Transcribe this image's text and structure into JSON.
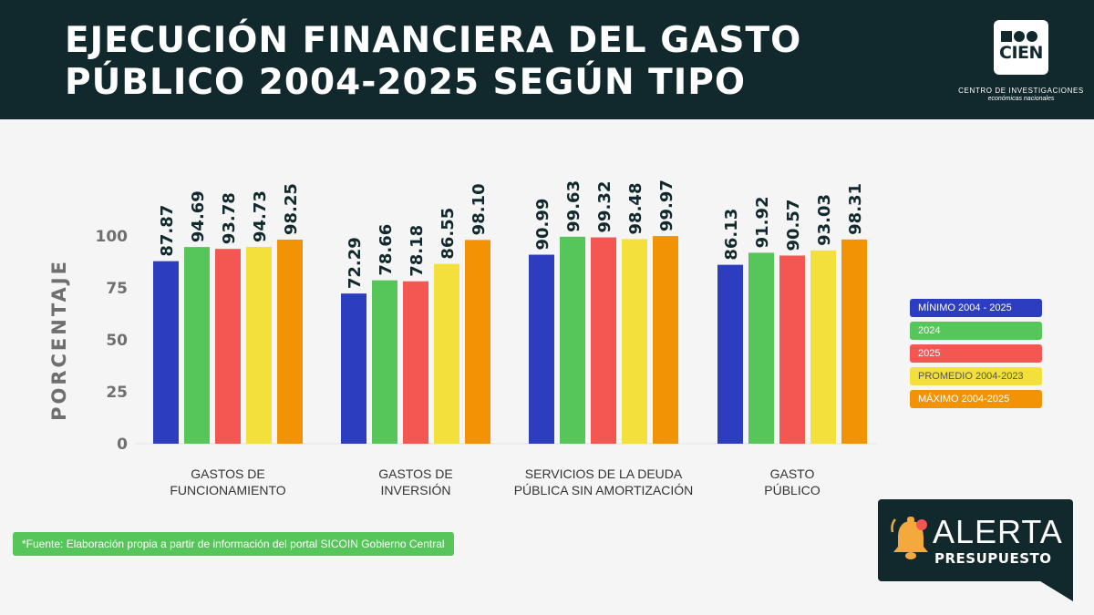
{
  "header": {
    "title_line1": "EJECUCIÓN FINANCIERA DEL GASTO",
    "title_line2": "PÚBLICO 2004-2025 SEGÚN TIPO",
    "logo_text": "CIEN",
    "logo_caption1": "CENTRO DE INVESTIGACIONES",
    "logo_caption2": "económicas nacionales",
    "background_color": "#11292d"
  },
  "chart_data": {
    "type": "bar",
    "ylabel": "PORCENTAJE",
    "ylim": [
      0,
      100
    ],
    "yticks": [
      0,
      25,
      50,
      75,
      100
    ],
    "grid": false,
    "legend_position": "right",
    "categories": [
      [
        "GASTOS DE",
        "FUNCIONAMIENTO"
      ],
      [
        "GASTOS DE",
        "INVERSIÓN"
      ],
      [
        "SERVICIOS DE LA DEUDA",
        "PÚBLICA SIN AMORTIZACIÓN"
      ],
      [
        "GASTO",
        "PÚBLICO"
      ]
    ],
    "series": [
      {
        "name": "MÍNIMO 2004 - 2025",
        "color": "#2d3dbf",
        "text_color": "#ffffff",
        "values": [
          87.87,
          72.29,
          90.99,
          86.13
        ]
      },
      {
        "name": "2024",
        "color": "#57c65a",
        "text_color": "#ffffff",
        "values": [
          94.69,
          78.66,
          99.63,
          91.92
        ]
      },
      {
        "name": "2025",
        "color": "#f45652",
        "text_color": "#ffffff",
        "values": [
          93.78,
          78.18,
          99.32,
          90.57
        ]
      },
      {
        "name": "PROMEDIO 2004-2023",
        "color": "#f3e03b",
        "text_color": "#555555",
        "values": [
          94.73,
          86.55,
          98.48,
          93.03
        ]
      },
      {
        "name": "MÁXIMO 2004-2025",
        "color": "#f29305",
        "text_color": "#ffffff",
        "values": [
          98.25,
          98.1,
          99.97,
          98.31
        ]
      }
    ]
  },
  "source_note": "*Fuente: Elaboración propia a partir de información del portal SICOIN Gobierno Central",
  "badge": {
    "title": "ALERTA",
    "subtitle": "PRESUPUESTO"
  }
}
